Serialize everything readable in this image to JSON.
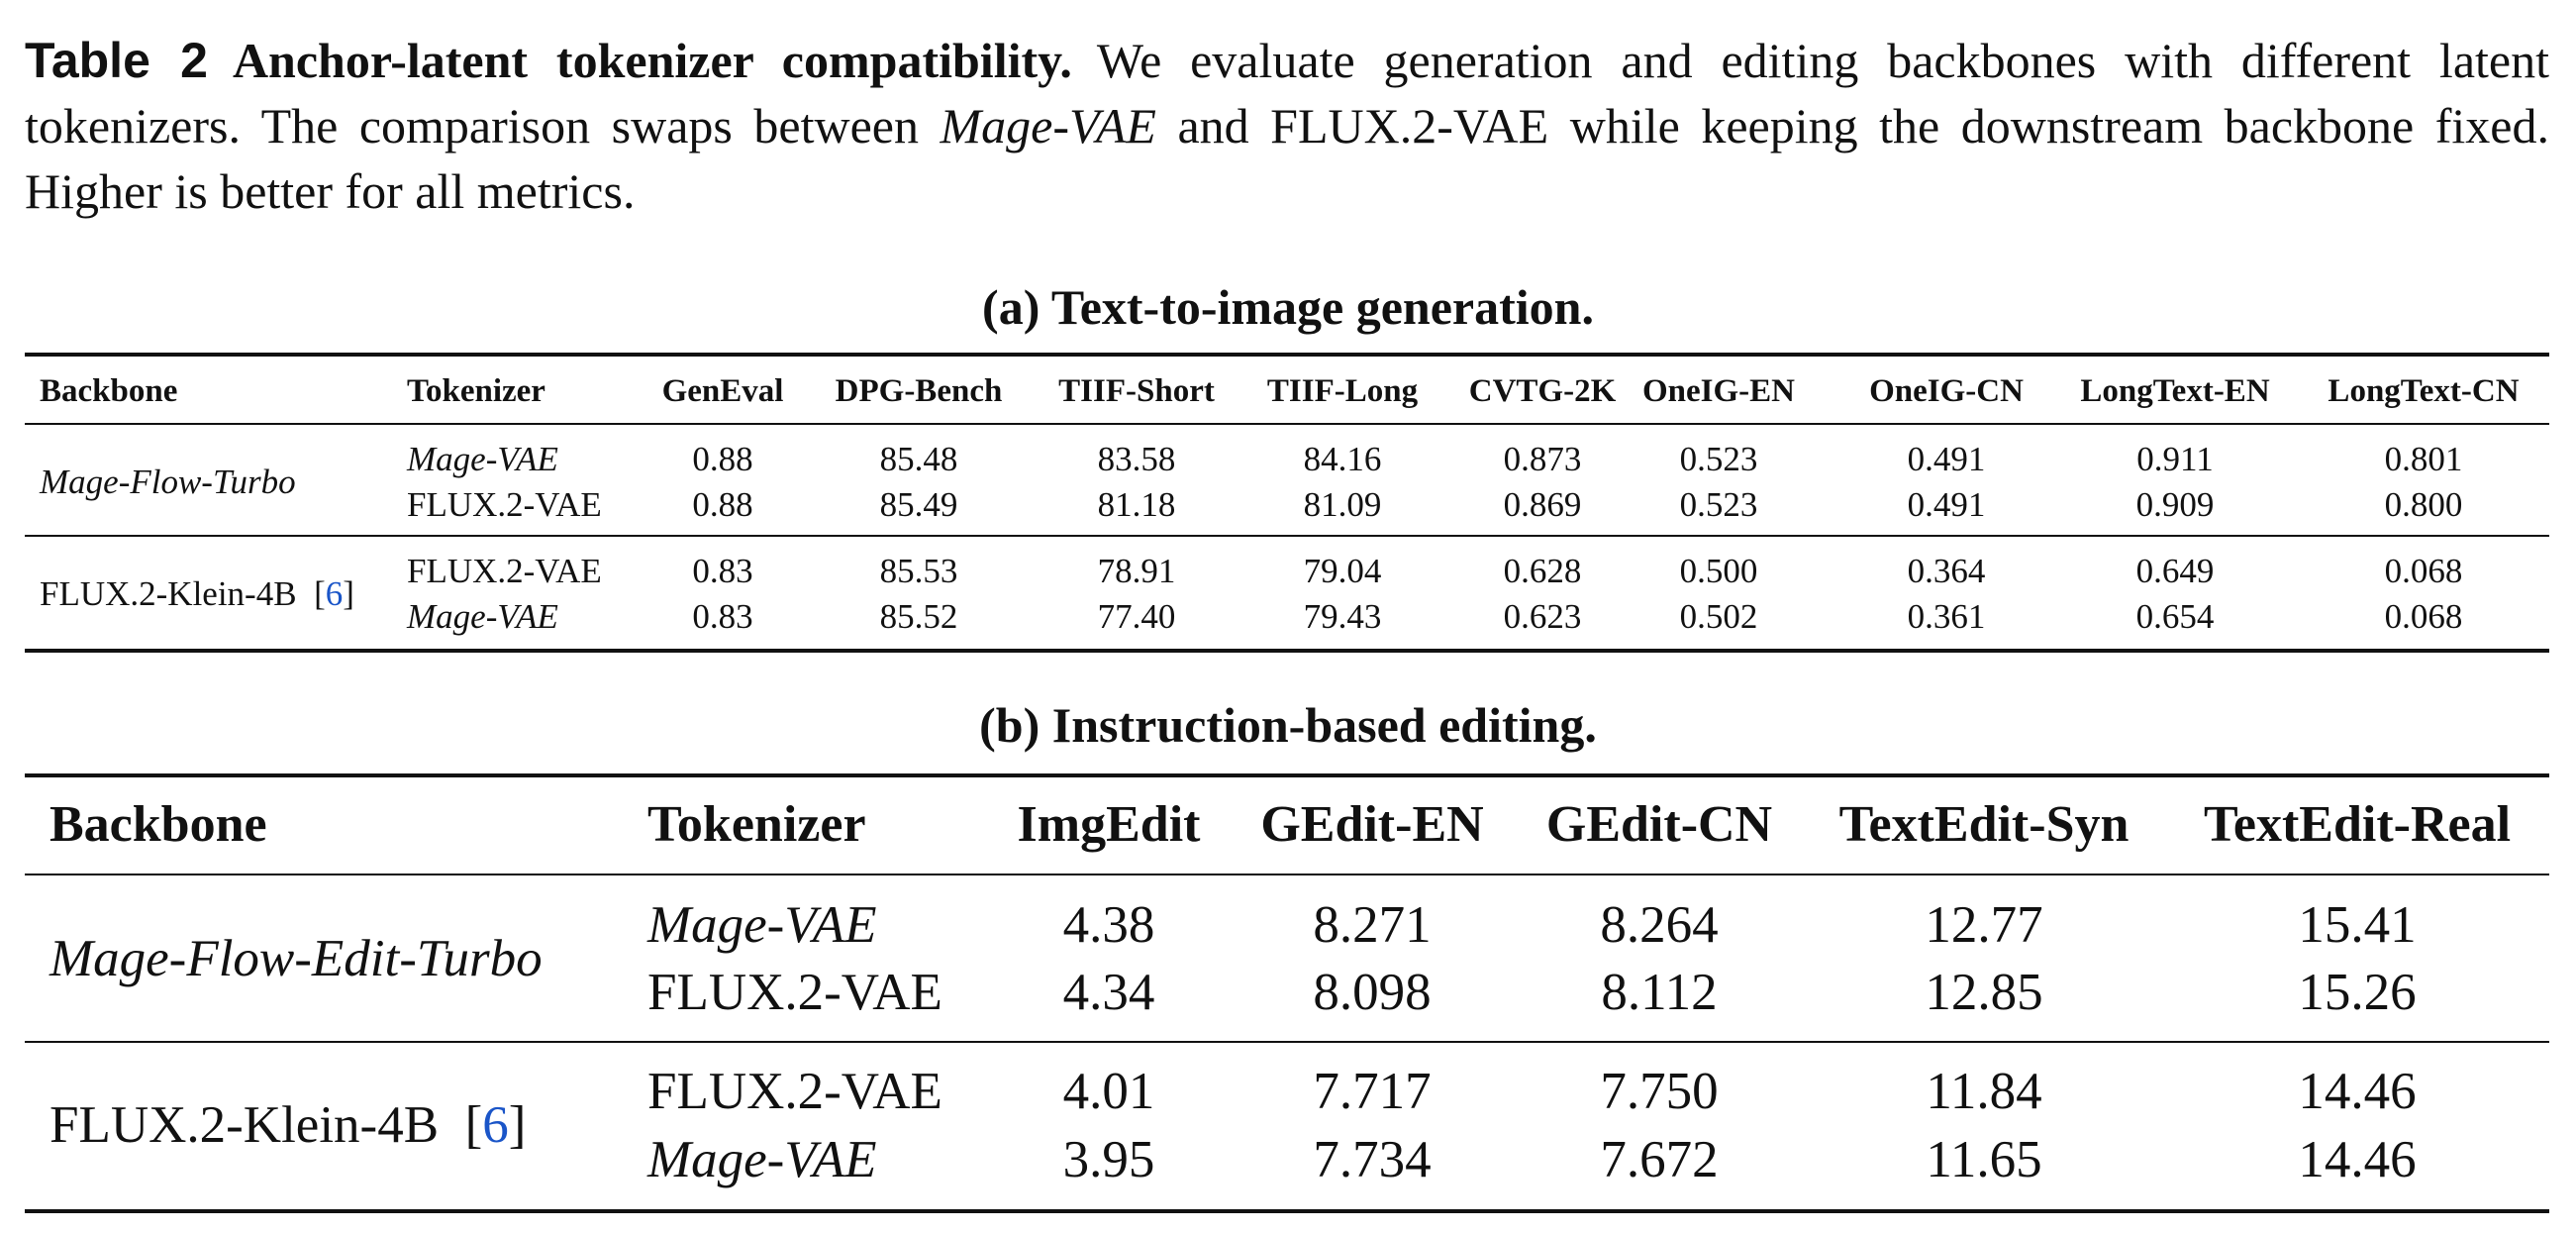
{
  "caption": {
    "label": "Table 2",
    "title": "Anchor-latent tokenizer compatibility.",
    "text": [
      "We evaluate generation and editing backbones with different latent tokenizers. The comparison swaps between ",
      "Mage-VAE",
      " and FLUX.2-VAE while keeping the downstream backbone fixed. Higher is better for all metrics."
    ]
  },
  "tables": [
    {
      "title": "(a) Text-to-image generation.",
      "header": [
        "Backbone",
        "Tokenizer",
        "GenEval",
        "DPG-Bench",
        "TIIF-Short",
        "TIIF-Long",
        "CVTG-2K",
        "OneIG-EN",
        "OneIG-CN",
        "LongText-EN",
        "LongText-CN"
      ],
      "groups": [
        {
          "backbone": "Mage-Flow-Turbo",
          "rows": [
            [
              "Mage-VAE",
              "0.88",
              "85.48",
              "83.58",
              "84.16",
              "0.873",
              "0.523",
              "0.491",
              "0.911",
              "0.801"
            ],
            [
              "FLUX.2-VAE",
              "0.88",
              "85.49",
              "81.18",
              "81.09",
              "0.869",
              "0.523",
              "0.491",
              "0.909",
              "0.800"
            ]
          ]
        },
        {
          "backbone": "FLUX.2-Klein-4B",
          "citation": "6",
          "rows": [
            [
              "FLUX.2-VAE",
              "0.83",
              "85.53",
              "78.91",
              "79.04",
              "0.628",
              "0.500",
              "0.364",
              "0.649",
              "0.068"
            ],
            [
              "Mage-VAE",
              "0.83",
              "85.52",
              "77.40",
              "79.43",
              "0.623",
              "0.502",
              "0.361",
              "0.654",
              "0.068"
            ]
          ]
        }
      ]
    },
    {
      "title": "(b) Instruction-based editing.",
      "header": [
        "Backbone",
        "Tokenizer",
        "ImgEdit",
        "GEdit-EN",
        "GEdit-CN",
        "TextEdit-Syn",
        "TextEdit-Real"
      ],
      "groups": [
        {
          "backbone": "Mage-Flow-Edit-Turbo",
          "rows": [
            [
              "Mage-VAE",
              "4.38",
              "8.271",
              "8.264",
              "12.77",
              "15.41"
            ],
            [
              "FLUX.2-VAE",
              "4.34",
              "8.098",
              "8.112",
              "12.85",
              "15.26"
            ]
          ]
        },
        {
          "backbone": "FLUX.2-Klein-4B",
          "citation": "6",
          "rows": [
            [
              "FLUX.2-VAE",
              "4.01",
              "7.717",
              "7.750",
              "11.84",
              "14.46"
            ],
            [
              "Mage-VAE",
              "3.95",
              "7.734",
              "7.672",
              "11.65",
              "14.46"
            ]
          ]
        }
      ]
    }
  ]
}
